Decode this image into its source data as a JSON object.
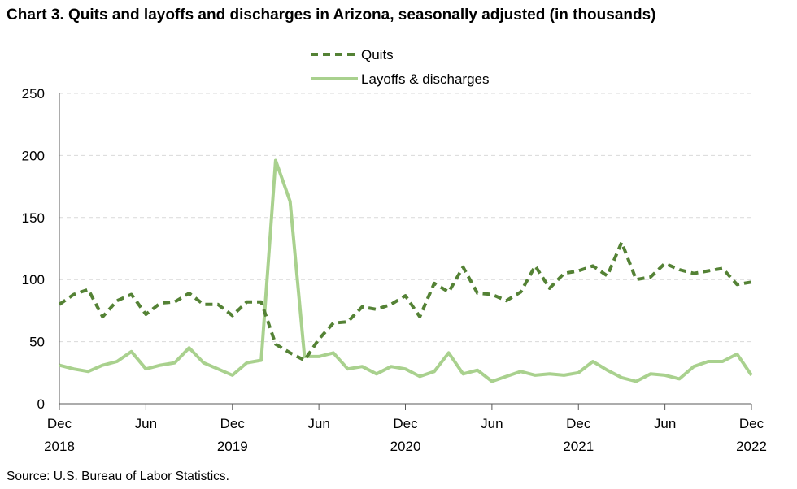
{
  "title": "Chart 3. Quits and layoffs and discharges in Arizona, seasonally adjusted (in thousands)",
  "source": "Source: U.S. Bureau of Labor Statistics.",
  "colors": {
    "quits": "#548235",
    "layoffs": "#a9d18e",
    "grid": "#d9d9d9",
    "axis": "#595959"
  },
  "chart_data": {
    "type": "line",
    "x_start": "Dec 2018",
    "x_end": "Dec 2022",
    "ylim": [
      0,
      250
    ],
    "yticks": [
      "0",
      "50",
      "100",
      "150",
      "200",
      "250"
    ],
    "xticks": [
      {
        "index": 0,
        "label": "Dec",
        "year": "2018"
      },
      {
        "index": 6,
        "label": "Jun",
        "year": ""
      },
      {
        "index": 12,
        "label": "Dec",
        "year": "2019"
      },
      {
        "index": 18,
        "label": "Jun",
        "year": ""
      },
      {
        "index": 24,
        "label": "Dec",
        "year": "2020"
      },
      {
        "index": 30,
        "label": "Jun",
        "year": ""
      },
      {
        "index": 36,
        "label": "Dec",
        "year": "2021"
      },
      {
        "index": 42,
        "label": "Jun",
        "year": ""
      },
      {
        "index": 48,
        "label": "Dec",
        "year": "2022"
      }
    ],
    "grid": true,
    "legend": "top-center",
    "series": [
      {
        "name": "Quits",
        "style": "dashed",
        "values": [
          80,
          88,
          92,
          70,
          83,
          88,
          72,
          81,
          82,
          89,
          80,
          80,
          71,
          82,
          82,
          48,
          41,
          35,
          52,
          65,
          66,
          78,
          76,
          80,
          87,
          70,
          97,
          90,
          110,
          89,
          88,
          83,
          90,
          111,
          93,
          105,
          107,
          111,
          103,
          130,
          100,
          102,
          113,
          108,
          105,
          107,
          109,
          96,
          98
        ]
      },
      {
        "name": "Layoffs & discharges",
        "style": "solid",
        "values": [
          31,
          28,
          26,
          31,
          34,
          42,
          28,
          31,
          33,
          45,
          33,
          28,
          23,
          33,
          35,
          196,
          163,
          38,
          38,
          41,
          28,
          30,
          24,
          30,
          28,
          22,
          26,
          41,
          24,
          27,
          18,
          22,
          26,
          23,
          24,
          23,
          25,
          34,
          27,
          21,
          18,
          24,
          23,
          20,
          30,
          34,
          34,
          40,
          23
        ]
      }
    ]
  }
}
